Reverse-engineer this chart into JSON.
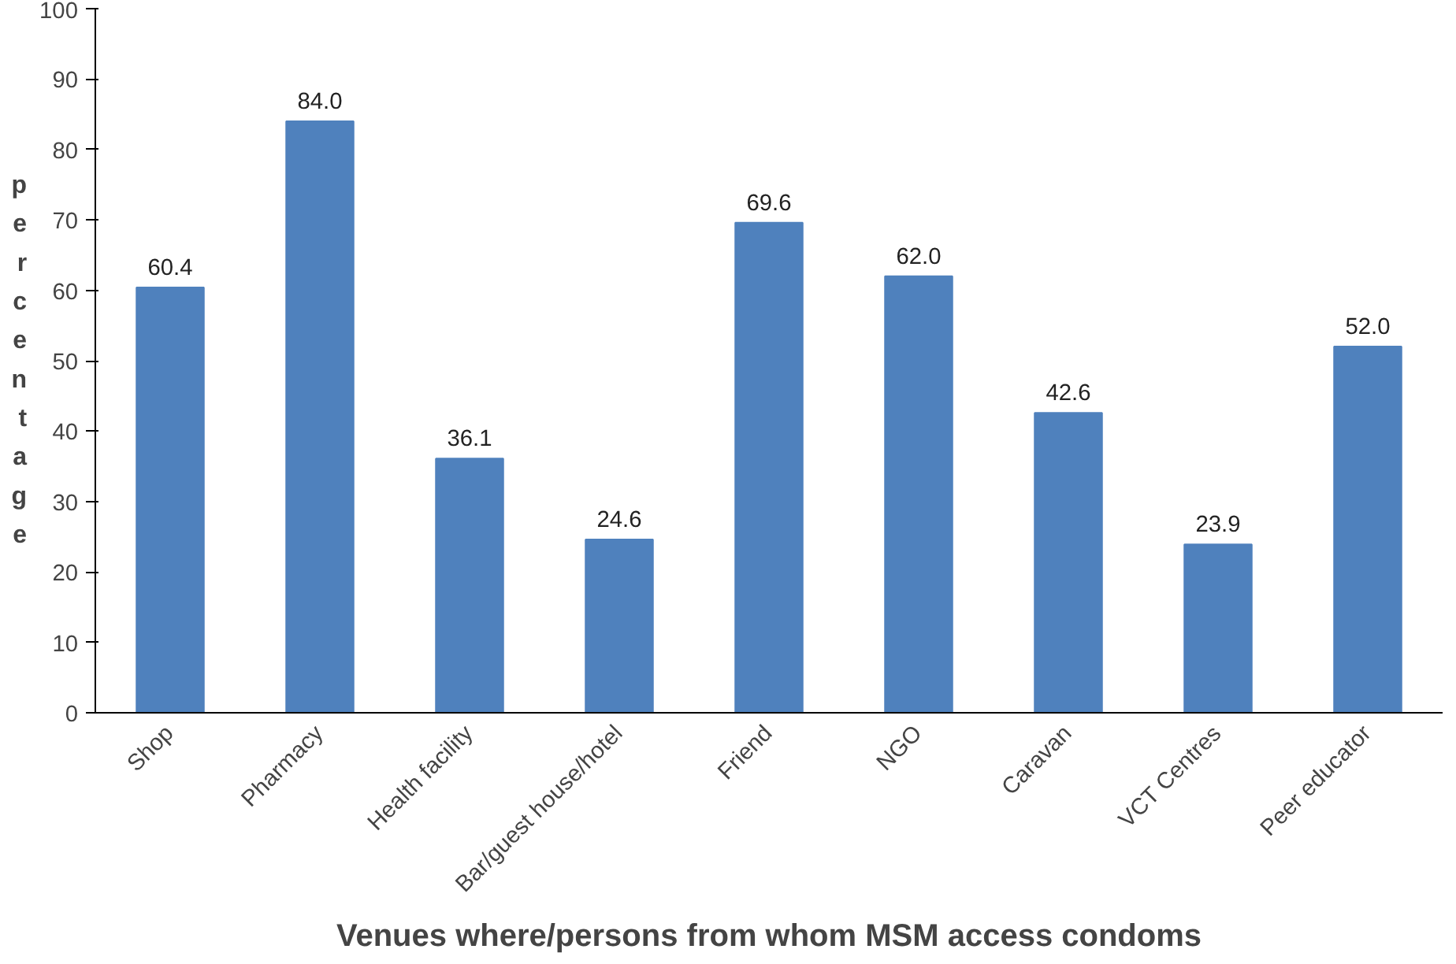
{
  "chart_data": {
    "type": "bar",
    "xlabel": "Venues where/persons from whom MSM access condoms",
    "ylabel": "percentage",
    "categories": [
      "Shop",
      "Pharmacy",
      "Health facility",
      "Bar/guest house/hotel",
      "Friend",
      "NGO",
      "Caravan",
      "VCT Centres",
      "Peer educator"
    ],
    "values": [
      60.4,
      84.0,
      36.1,
      24.6,
      69.6,
      62.0,
      42.6,
      23.9,
      52.0
    ],
    "value_labels": [
      "60.4",
      "84.0",
      "36.1",
      "24.6",
      "69.6",
      "62.0",
      "42.6",
      "23.9",
      "52.0"
    ],
    "color": "#4f81bd",
    "ylim": [
      0,
      100
    ],
    "yticks": [
      0,
      10,
      20,
      30,
      40,
      50,
      60,
      70,
      80,
      90,
      100
    ],
    "grid": false
  }
}
